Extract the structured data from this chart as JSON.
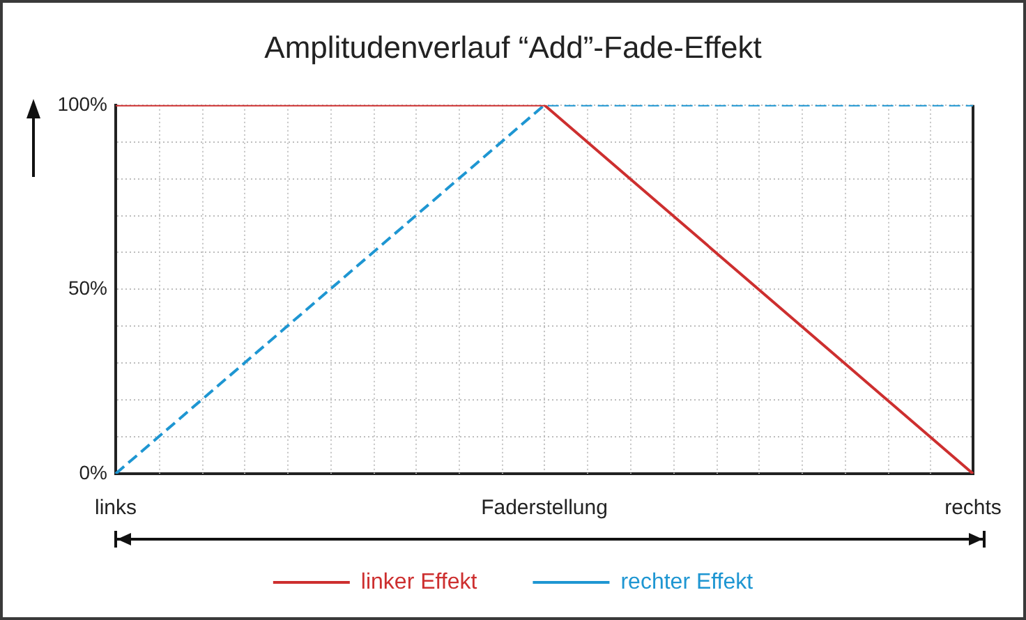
{
  "chart_data": {
    "type": "line",
    "title": "Amplitudenverlauf “Add”-Fade-Effekt",
    "xlabel": "Faderstellung",
    "categories": [
      "links",
      null,
      "rechts"
    ],
    "series": [
      {
        "name": "linker Effekt",
        "color": "#cd2f2f",
        "values": [
          100,
          100,
          0
        ],
        "line_style": "solid"
      },
      {
        "name": "rechter Effekt",
        "color": "#1e96d2",
        "values": [
          0,
          100,
          100
        ],
        "line_style": "dashed"
      }
    ],
    "ylim": [
      0,
      100
    ],
    "yticks": [
      {
        "value": 0,
        "label": "0%"
      },
      {
        "value": 10,
        "label": null
      },
      {
        "value": 20,
        "label": null
      },
      {
        "value": 30,
        "label": null
      },
      {
        "value": 40,
        "label": null
      },
      {
        "value": 50,
        "label": "50%"
      },
      {
        "value": 60,
        "label": null
      },
      {
        "value": 70,
        "label": null
      },
      {
        "value": 80,
        "label": null
      },
      {
        "value": 90,
        "label": null
      },
      {
        "value": 100,
        "label": "100%"
      }
    ],
    "grid": true,
    "legend": "bottom",
    "marker": "none"
  }
}
